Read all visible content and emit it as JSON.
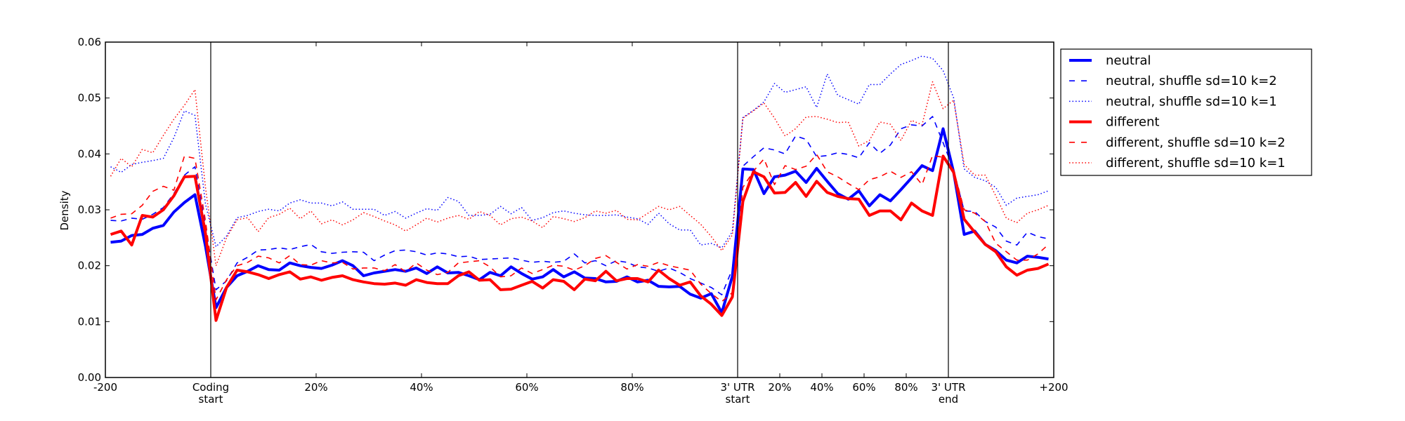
{
  "chart_data": {
    "type": "line",
    "title": "",
    "xlabel": "",
    "ylabel": "Density",
    "ylim": [
      0,
      0.06
    ],
    "yticks": [
      "0.00",
      "0.01",
      "0.02",
      "0.03",
      "0.04",
      "0.05",
      "0.06"
    ],
    "grid": false,
    "legend_position": "outside-top-right",
    "segments": [
      {
        "name": "upstream",
        "range": "-200 to 0",
        "bins": 10
      },
      {
        "name": "coding",
        "range": "0% to 100%",
        "bins": 50
      },
      {
        "name": "utr3",
        "range": "0% to 100%",
        "bins": 20
      },
      {
        "name": "downstream",
        "range": "0 to +200",
        "bins": 10
      }
    ],
    "xticks": [
      {
        "pos": 0,
        "label": "-200"
      },
      {
        "pos": 1,
        "label": "Coding",
        "label2": "start"
      },
      {
        "pos": 2,
        "label": "20%"
      },
      {
        "pos": 3,
        "label": "40%"
      },
      {
        "pos": 4,
        "label": "60%"
      },
      {
        "pos": 5,
        "label": "80%"
      },
      {
        "pos": 6,
        "label": "3' UTR",
        "label2": "start"
      },
      {
        "pos": 6.4,
        "label": "20%"
      },
      {
        "pos": 6.8,
        "label": "40%"
      },
      {
        "pos": 7.2,
        "label": "60%"
      },
      {
        "pos": 7.6,
        "label": "80%"
      },
      {
        "pos": 8,
        "label": "3' UTR",
        "label2": "end"
      },
      {
        "pos": 9,
        "label": "+200"
      }
    ],
    "boundaries": [
      1,
      6,
      8
    ],
    "series": [
      {
        "name": "neutral",
        "color": "#0000ff",
        "style": "solid",
        "upstream": [
          0.0242,
          0.0244,
          0.0254,
          0.0256,
          0.0267,
          0.0272,
          0.0296,
          0.0313,
          0.0327,
          0.0235
        ],
        "coding": [
          0.0125,
          0.0161,
          0.0182,
          0.019,
          0.02,
          0.0193,
          0.0192,
          0.0205,
          0.02,
          0.0197,
          0.0195,
          0.0201,
          0.0209,
          0.02,
          0.0182,
          0.0187,
          0.019,
          0.0193,
          0.019,
          0.0196,
          0.0186,
          0.0198,
          0.0187,
          0.0188,
          0.0182,
          0.0175,
          0.0188,
          0.0182,
          0.0198,
          0.0186,
          0.0176,
          0.018,
          0.0193,
          0.018,
          0.0189,
          0.0178,
          0.0177,
          0.0171,
          0.0172,
          0.018,
          0.0171,
          0.0174,
          0.0163,
          0.0162,
          0.0163,
          0.0149,
          0.0142,
          0.015,
          0.0116,
          0.0181
        ],
        "utr3": [
          0.0373,
          0.0372,
          0.0329,
          0.0359,
          0.0362,
          0.0369,
          0.0349,
          0.0374,
          0.0351,
          0.0329,
          0.0319,
          0.0334,
          0.0307,
          0.0327,
          0.0316,
          0.0336,
          0.0357,
          0.0379,
          0.037,
          0.0445
        ],
        "downstream": [
          0.0367,
          0.0256,
          0.0262,
          0.0238,
          0.0227,
          0.021,
          0.0205,
          0.0217,
          0.0215,
          0.0212
        ]
      },
      {
        "name": "neutral, shuffle sd=10 k=2",
        "color": "#0000ff",
        "style": "dashed",
        "upstream": [
          0.0281,
          0.028,
          0.0285,
          0.0283,
          0.0292,
          0.0304,
          0.0329,
          0.0362,
          0.0377,
          0.027
        ],
        "coding": [
          0.0157,
          0.0173,
          0.0205,
          0.0215,
          0.0228,
          0.0229,
          0.0232,
          0.0229,
          0.0234,
          0.0238,
          0.0225,
          0.0222,
          0.0224,
          0.0225,
          0.0224,
          0.0209,
          0.0219,
          0.0227,
          0.0228,
          0.0225,
          0.0219,
          0.0223,
          0.0221,
          0.0216,
          0.0217,
          0.0211,
          0.0212,
          0.0213,
          0.0214,
          0.021,
          0.0206,
          0.0208,
          0.0206,
          0.0208,
          0.0221,
          0.0205,
          0.0209,
          0.02,
          0.0209,
          0.0206,
          0.0198,
          0.0196,
          0.019,
          0.0196,
          0.0188,
          0.0177,
          0.0169,
          0.0161,
          0.0148,
          0.0194
        ],
        "utr3": [
          0.0378,
          0.0395,
          0.0411,
          0.0407,
          0.04,
          0.0432,
          0.0426,
          0.0395,
          0.0397,
          0.0402,
          0.0399,
          0.0393,
          0.042,
          0.0401,
          0.0416,
          0.0445,
          0.0452,
          0.045,
          0.0467,
          0.042
        ],
        "downstream": [
          0.0371,
          0.0298,
          0.0297,
          0.0279,
          0.0269,
          0.0244,
          0.0237,
          0.026,
          0.0252,
          0.0248
        ]
      },
      {
        "name": "neutral, shuffle sd=10 k=1",
        "color": "#0000ff",
        "style": "dotted",
        "upstream": [
          0.0377,
          0.0367,
          0.0381,
          0.0385,
          0.0388,
          0.0392,
          0.0429,
          0.0477,
          0.0469,
          0.031
        ],
        "coding": [
          0.0234,
          0.0253,
          0.0286,
          0.029,
          0.0297,
          0.0301,
          0.0298,
          0.0312,
          0.0318,
          0.0312,
          0.0312,
          0.0307,
          0.0314,
          0.0301,
          0.0301,
          0.0301,
          0.029,
          0.0297,
          0.0285,
          0.0294,
          0.0302,
          0.0299,
          0.0322,
          0.0315,
          0.029,
          0.029,
          0.0292,
          0.0306,
          0.0293,
          0.0304,
          0.0281,
          0.0286,
          0.0295,
          0.0298,
          0.0294,
          0.0291,
          0.029,
          0.029,
          0.0291,
          0.0287,
          0.0284,
          0.0274,
          0.0294,
          0.0275,
          0.0264,
          0.0264,
          0.0237,
          0.024,
          0.0232,
          0.0261
        ],
        "utr3": [
          0.0465,
          0.0478,
          0.0493,
          0.0526,
          0.051,
          0.0515,
          0.052,
          0.0483,
          0.0543,
          0.0505,
          0.0497,
          0.0489,
          0.0524,
          0.0524,
          0.0543,
          0.056,
          0.0567,
          0.0575,
          0.0571,
          0.0549
        ],
        "downstream": [
          0.05,
          0.0373,
          0.0358,
          0.0352,
          0.034,
          0.0308,
          0.0321,
          0.0324,
          0.0327,
          0.0334
        ]
      },
      {
        "name": "different",
        "color": "#ff0000",
        "style": "solid",
        "upstream": [
          0.0256,
          0.0262,
          0.0237,
          0.029,
          0.0287,
          0.03,
          0.0325,
          0.0359,
          0.036,
          0.0258
        ],
        "coding": [
          0.0102,
          0.0161,
          0.0192,
          0.0189,
          0.0184,
          0.0177,
          0.0184,
          0.0189,
          0.0176,
          0.018,
          0.0174,
          0.0179,
          0.0182,
          0.0175,
          0.0171,
          0.0168,
          0.0167,
          0.0169,
          0.0165,
          0.0175,
          0.017,
          0.0168,
          0.0168,
          0.0182,
          0.0189,
          0.0174,
          0.0175,
          0.0157,
          0.0158,
          0.0165,
          0.0172,
          0.016,
          0.0175,
          0.0172,
          0.0157,
          0.0176,
          0.0173,
          0.019,
          0.0173,
          0.0177,
          0.0177,
          0.0171,
          0.0192,
          0.0177,
          0.0165,
          0.0171,
          0.0146,
          0.0131,
          0.0111,
          0.0144
        ],
        "utr3": [
          0.0315,
          0.0368,
          0.0359,
          0.033,
          0.0331,
          0.0349,
          0.0324,
          0.0351,
          0.0331,
          0.0324,
          0.032,
          0.0319,
          0.029,
          0.0298,
          0.0298,
          0.0282,
          0.0312,
          0.0298,
          0.029,
          0.0396
        ],
        "downstream": [
          0.0367,
          0.0283,
          0.026,
          0.0238,
          0.0225,
          0.0198,
          0.0183,
          0.0192,
          0.0195,
          0.0203
        ]
      },
      {
        "name": "different, shuffle sd=10 k=2",
        "color": "#ff0000",
        "style": "dashed",
        "upstream": [
          0.0285,
          0.0292,
          0.0293,
          0.0308,
          0.0333,
          0.0342,
          0.0335,
          0.0396,
          0.0392,
          0.028
        ],
        "coding": [
          0.0139,
          0.0175,
          0.02,
          0.0206,
          0.0217,
          0.0214,
          0.0205,
          0.0218,
          0.0202,
          0.0201,
          0.0209,
          0.0205,
          0.0206,
          0.0194,
          0.0196,
          0.0196,
          0.0191,
          0.0202,
          0.0189,
          0.0205,
          0.0192,
          0.0184,
          0.0188,
          0.0205,
          0.0207,
          0.0209,
          0.0198,
          0.018,
          0.0182,
          0.0196,
          0.0186,
          0.0193,
          0.0201,
          0.0199,
          0.0192,
          0.02,
          0.0213,
          0.0218,
          0.0206,
          0.0194,
          0.0202,
          0.0199,
          0.0206,
          0.02,
          0.0196,
          0.0192,
          0.0167,
          0.015,
          0.0136,
          0.0152
        ],
        "utr3": [
          0.034,
          0.0369,
          0.0391,
          0.0345,
          0.0379,
          0.0372,
          0.0378,
          0.0399,
          0.0368,
          0.0359,
          0.0347,
          0.0336,
          0.0354,
          0.0359,
          0.0369,
          0.0358,
          0.0368,
          0.0345,
          0.0397,
          0.0394
        ],
        "downstream": [
          0.0371,
          0.03,
          0.0294,
          0.0279,
          0.024,
          0.0225,
          0.021,
          0.021,
          0.0221,
          0.0238
        ]
      },
      {
        "name": "different, shuffle sd=10 k=1",
        "color": "#ff0000",
        "style": "dotted",
        "upstream": [
          0.036,
          0.0392,
          0.0377,
          0.0408,
          0.0402,
          0.0433,
          0.0462,
          0.0487,
          0.0515,
          0.034
        ],
        "coding": [
          0.02,
          0.025,
          0.0282,
          0.0286,
          0.0261,
          0.0286,
          0.0292,
          0.0303,
          0.0284,
          0.0298,
          0.0275,
          0.0282,
          0.0273,
          0.0282,
          0.0295,
          0.0288,
          0.028,
          0.0273,
          0.0262,
          0.0273,
          0.0285,
          0.0278,
          0.0285,
          0.029,
          0.0283,
          0.0297,
          0.029,
          0.0273,
          0.0284,
          0.0287,
          0.028,
          0.0268,
          0.0288,
          0.0284,
          0.0279,
          0.0286,
          0.0298,
          0.0294,
          0.0299,
          0.0283,
          0.0282,
          0.0294,
          0.0306,
          0.03,
          0.0306,
          0.029,
          0.0274,
          0.0252,
          0.0227,
          0.0255
        ],
        "utr3": [
          0.0464,
          0.0477,
          0.0491,
          0.0464,
          0.0432,
          0.0445,
          0.0466,
          0.0467,
          0.0462,
          0.0456,
          0.0457,
          0.0414,
          0.0424,
          0.0457,
          0.0453,
          0.0424,
          0.046,
          0.0452,
          0.0529,
          0.0481
        ],
        "downstream": [
          0.0496,
          0.0381,
          0.0362,
          0.0362,
          0.0325,
          0.0285,
          0.0277,
          0.0294,
          0.03,
          0.0308
        ]
      }
    ]
  }
}
